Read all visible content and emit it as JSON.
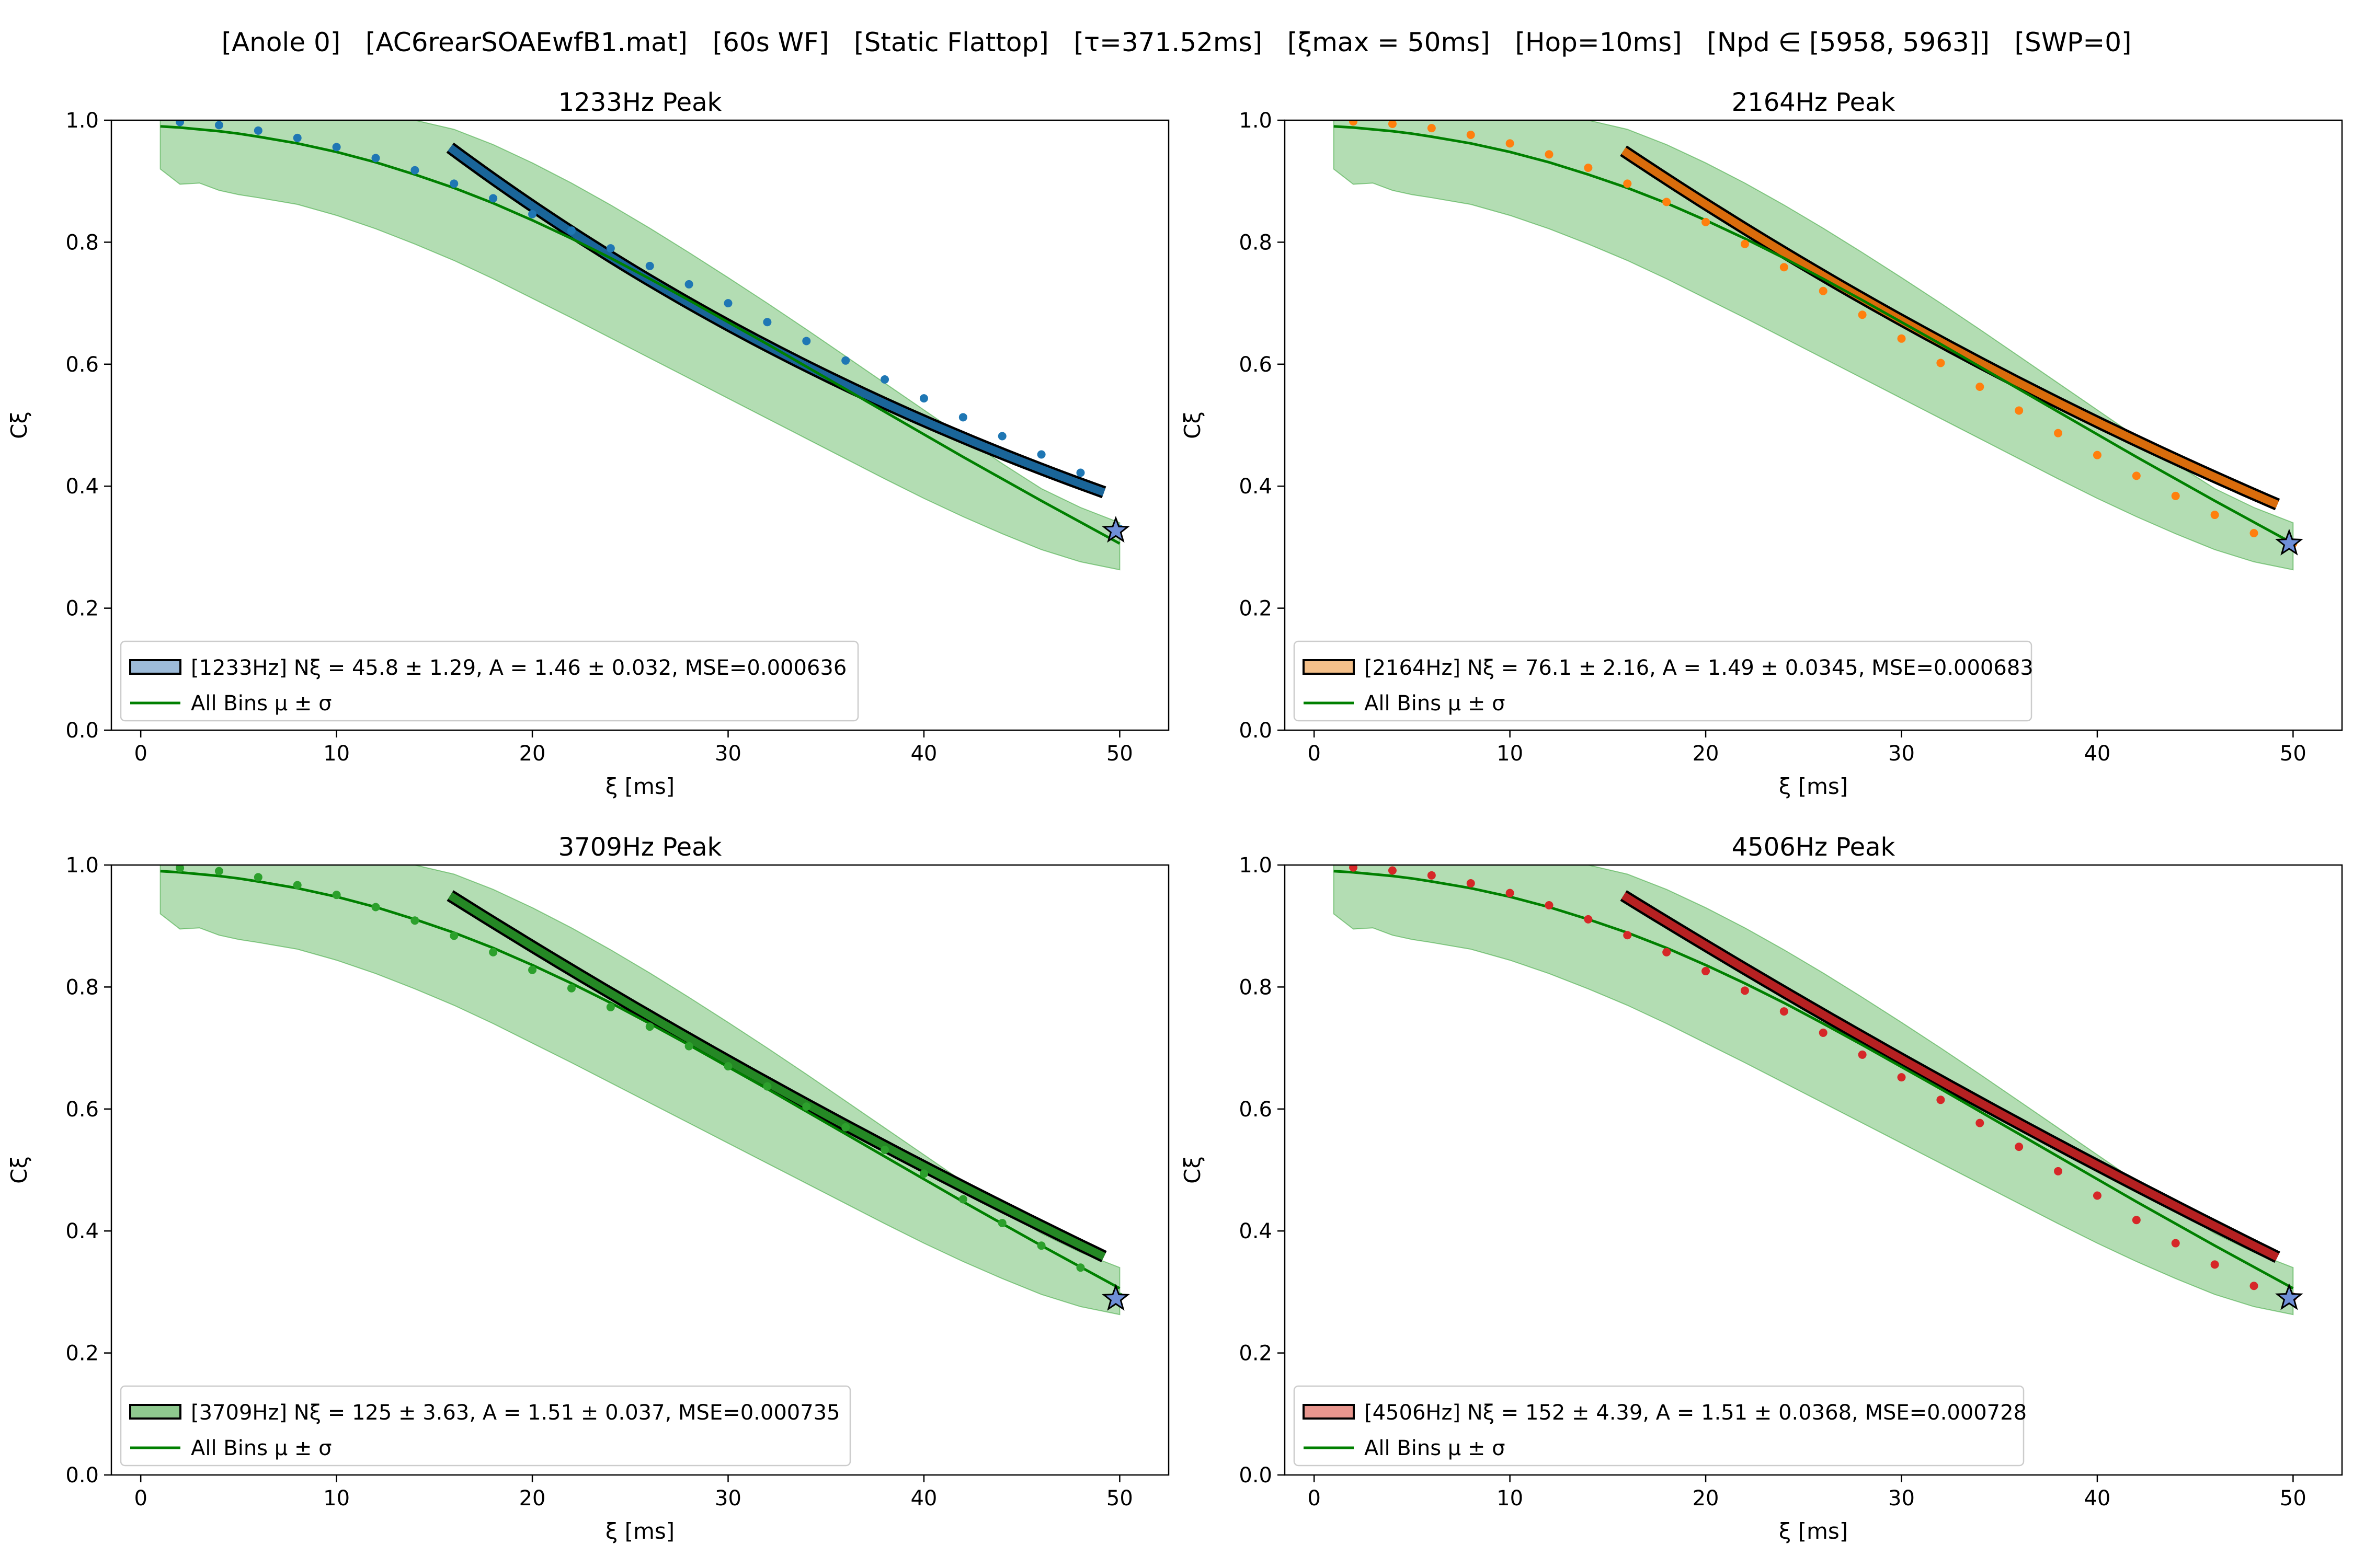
{
  "header": {
    "title": "[Anole 0]   [AC6rearSOAEwfB1.mat]   [60s WF]   [Static Flattop]   [τ=371.52ms]   [ξmax = 50ms]   [Hop=10ms]   [Npd ∈ [5958, 5963]]   [SWP=0]"
  },
  "colors": {
    "band": "#2ca02c",
    "all_bins_line": "#008000",
    "fit_edge": "#000000",
    "star_fill": "#6f8fd8"
  },
  "chart_data": [
    {
      "type": "scatter",
      "title": "1233Hz Peak",
      "xlabel": "ξ [ms]",
      "ylabel": "Cξ",
      "xlim": [
        -1.5,
        52.5
      ],
      "ylim": [
        0,
        1
      ],
      "xticks": [
        "0",
        "10",
        "20",
        "30",
        "40",
        "50"
      ],
      "yticks": [
        "0.0",
        "0.2",
        "0.4",
        "0.6",
        "0.8",
        "1.0"
      ],
      "grid": false,
      "legend_placement": "lower-left",
      "peak_color": "#1f77b4",
      "fit_fill": "#9dbbd9",
      "points": {
        "x": [
          2,
          4,
          6,
          8,
          10,
          12,
          14,
          16,
          18,
          20,
          22,
          24,
          26,
          28,
          30,
          32,
          34,
          36,
          38,
          40,
          42,
          44,
          46,
          48,
          50
        ],
        "y": [
          0.997,
          0.992,
          0.983,
          0.971,
          0.956,
          0.938,
          0.918,
          0.896,
          0.872,
          0.846,
          0.819,
          0.79,
          0.761,
          0.731,
          0.7,
          0.669,
          0.638,
          0.606,
          0.575,
          0.544,
          0.513,
          0.482,
          0.452,
          0.422,
          0.33
        ]
      },
      "fit": {
        "x_start": 15.8,
        "y_start": 0.955,
        "x_end": 49.2,
        "y_end": 0.39,
        "N_xi": 45.8
      },
      "star": {
        "x": 49.8,
        "y": 0.327
      },
      "legend": [
        "[1233Hz] Nξ = 45.8 ± 1.29, A = 1.46 ± 0.032, MSE=0.000636",
        "All Bins μ ± σ"
      ]
    },
    {
      "type": "scatter",
      "title": "2164Hz Peak",
      "xlabel": "ξ [ms]",
      "ylabel": "Cξ",
      "xlim": [
        -1.5,
        52.5
      ],
      "ylim": [
        0,
        1
      ],
      "xticks": [
        "0",
        "10",
        "20",
        "30",
        "40",
        "50"
      ],
      "yticks": [
        "0.0",
        "0.2",
        "0.4",
        "0.6",
        "0.8",
        "1.0"
      ],
      "grid": false,
      "legend_placement": "lower-left",
      "peak_color": "#ff7f0e",
      "fit_fill": "#f4c08a",
      "points": {
        "x": [
          2,
          4,
          6,
          8,
          10,
          12,
          14,
          16,
          18,
          20,
          22,
          24,
          26,
          28,
          30,
          32,
          34,
          36,
          38,
          40,
          42,
          44,
          46,
          48,
          50
        ],
        "y": [
          0.998,
          0.994,
          0.987,
          0.976,
          0.962,
          0.944,
          0.922,
          0.896,
          0.866,
          0.833,
          0.797,
          0.759,
          0.72,
          0.681,
          0.642,
          0.602,
          0.563,
          0.524,
          0.487,
          0.451,
          0.417,
          0.384,
          0.353,
          0.323,
          0.306
        ]
      },
      "fit": {
        "x_start": 15.8,
        "y_start": 0.95,
        "x_end": 49.2,
        "y_end": 0.37,
        "N_xi": 76.1
      },
      "star": {
        "x": 49.8,
        "y": 0.306
      },
      "legend": [
        "[2164Hz] Nξ = 76.1 ± 2.16, A = 1.49 ± 0.0345, MSE=0.000683",
        "All Bins μ ± σ"
      ]
    },
    {
      "type": "scatter",
      "title": "3709Hz Peak",
      "xlabel": "ξ [ms]",
      "ylabel": "Cξ",
      "xlim": [
        -1.5,
        52.5
      ],
      "ylim": [
        0,
        1
      ],
      "xticks": [
        "0",
        "10",
        "20",
        "30",
        "40",
        "50"
      ],
      "yticks": [
        "0.0",
        "0.2",
        "0.4",
        "0.6",
        "0.8",
        "1.0"
      ],
      "grid": false,
      "legend_placement": "lower-left",
      "peak_color": "#2ca02c",
      "fit_fill": "#8fc98f",
      "points": {
        "x": [
          2,
          4,
          6,
          8,
          10,
          12,
          14,
          16,
          18,
          20,
          22,
          24,
          26,
          28,
          30,
          32,
          34,
          36,
          38,
          40,
          42,
          44,
          46,
          48,
          50
        ],
        "y": [
          0.995,
          0.99,
          0.98,
          0.967,
          0.951,
          0.931,
          0.909,
          0.884,
          0.857,
          0.828,
          0.798,
          0.767,
          0.735,
          0.703,
          0.67,
          0.637,
          0.604,
          0.57,
          0.533,
          0.494,
          0.452,
          0.413,
          0.376,
          0.34,
          0.292
        ]
      },
      "fit": {
        "x_start": 15.8,
        "y_start": 0.95,
        "x_end": 49.2,
        "y_end": 0.358,
        "N_xi": 125
      },
      "star": {
        "x": 49.8,
        "y": 0.289
      },
      "legend": [
        "[3709Hz] Nξ = 125 ± 3.63, A = 1.51 ± 0.037, MSE=0.000735",
        "All Bins μ ± σ"
      ]
    },
    {
      "type": "scatter",
      "title": "4506Hz Peak",
      "xlabel": "ξ [ms]",
      "ylabel": "Cξ",
      "xlim": [
        -1.5,
        52.5
      ],
      "ylim": [
        0,
        1
      ],
      "xticks": [
        "0",
        "10",
        "20",
        "30",
        "40",
        "50"
      ],
      "yticks": [
        "0.0",
        "0.2",
        "0.4",
        "0.6",
        "0.8",
        "1.0"
      ],
      "grid": false,
      "legend_placement": "lower-left",
      "peak_color": "#d62728",
      "fit_fill": "#e8968e",
      "points": {
        "x": [
          2,
          4,
          6,
          8,
          10,
          12,
          14,
          16,
          18,
          20,
          22,
          24,
          26,
          28,
          30,
          32,
          34,
          36,
          38,
          40,
          42,
          44,
          46,
          48,
          50
        ],
        "y": [
          0.996,
          0.991,
          0.983,
          0.97,
          0.954,
          0.934,
          0.911,
          0.885,
          0.857,
          0.826,
          0.794,
          0.76,
          0.725,
          0.689,
          0.652,
          0.615,
          0.577,
          0.538,
          0.498,
          0.458,
          0.418,
          0.38,
          0.345,
          0.31,
          0.292
        ]
      },
      "fit": {
        "x_start": 15.8,
        "y_start": 0.95,
        "x_end": 49.2,
        "y_end": 0.357,
        "N_xi": 152
      },
      "star": {
        "x": 49.8,
        "y": 0.29
      },
      "legend": [
        "[4506Hz] Nξ = 152 ± 4.39, A = 1.51 ± 0.0368, MSE=0.000728",
        "All Bins μ ± σ"
      ]
    }
  ],
  "all_bins": {
    "x": [
      1,
      2,
      3,
      4,
      5,
      6,
      8,
      10,
      12,
      14,
      16,
      18,
      20,
      22,
      24,
      26,
      28,
      30,
      32,
      34,
      36,
      38,
      40,
      42,
      44,
      46,
      48,
      50
    ],
    "mean": [
      0.99,
      0.988,
      0.985,
      0.982,
      0.978,
      0.973,
      0.962,
      0.948,
      0.931,
      0.911,
      0.889,
      0.864,
      0.836,
      0.806,
      0.774,
      0.74,
      0.705,
      0.669,
      0.633,
      0.596,
      0.559,
      0.522,
      0.485,
      0.448,
      0.412,
      0.376,
      0.341,
      0.306
    ],
    "upper": [
      1.0,
      1.0,
      1.0,
      1.0,
      1.0,
      1.0,
      1.0,
      1.0,
      1.0,
      1.0,
      0.985,
      0.96,
      0.93,
      0.897,
      0.861,
      0.823,
      0.783,
      0.742,
      0.7,
      0.657,
      0.613,
      0.569,
      0.525,
      0.481,
      0.437,
      0.396,
      0.365,
      0.34
    ],
    "lower": [
      0.92,
      0.895,
      0.897,
      0.885,
      0.878,
      0.873,
      0.862,
      0.844,
      0.822,
      0.797,
      0.77,
      0.74,
      0.708,
      0.676,
      0.643,
      0.61,
      0.577,
      0.544,
      0.511,
      0.478,
      0.445,
      0.412,
      0.38,
      0.35,
      0.322,
      0.296,
      0.276,
      0.263
    ]
  }
}
